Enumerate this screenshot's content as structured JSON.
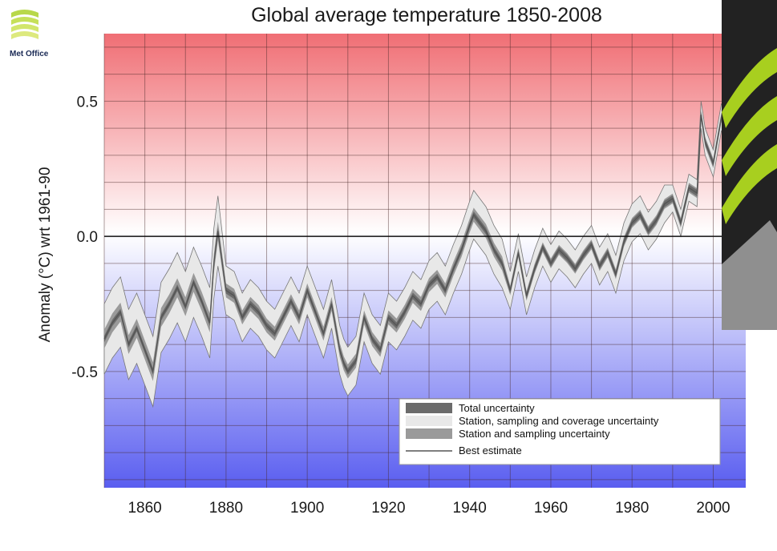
{
  "logo": {
    "text": "Met Office"
  },
  "chart_data": {
    "type": "line",
    "title": "Global average temperature 1850-2008",
    "xlabel": "",
    "ylabel": "Anomaly (°C) wrt 1961-90",
    "xlim": [
      1850,
      2008
    ],
    "ylim": [
      -0.93,
      0.75
    ],
    "x_ticks": [
      1860,
      1880,
      1900,
      1920,
      1940,
      1960,
      1980,
      2000
    ],
    "x_tick_labels": [
      "1860",
      "1880",
      "1900",
      "1920",
      "1940",
      "1960",
      "1980",
      "2000"
    ],
    "y_ticks": [
      0.5,
      0.0,
      -0.5
    ],
    "y_tick_labels": [
      "0.5",
      "0.0",
      "-0.5"
    ],
    "grid": true,
    "zero_line": true,
    "legend_position": "bottom-right",
    "legend": [
      {
        "label": "Total uncertainty",
        "color": "#6b6b6b"
      },
      {
        "label": "Station, sampling and coverage uncertainty",
        "color": "#e8e8e8"
      },
      {
        "label": "Station and sampling uncertainty",
        "color": "#9a9a9a"
      },
      {
        "label": "Best estimate",
        "color": "#555555"
      }
    ],
    "background": {
      "top_color": "#f06e74",
      "mid_color": "#ffffff",
      "bottom_color": "#5a5ef0"
    },
    "series": [
      {
        "name": "Best estimate",
        "x": [
          1850,
          1852,
          1854,
          1856,
          1858,
          1860,
          1862,
          1864,
          1866,
          1868,
          1870,
          1872,
          1874,
          1876,
          1877,
          1878,
          1880,
          1882,
          1884,
          1886,
          1888,
          1890,
          1892,
          1894,
          1896,
          1898,
          1900,
          1902,
          1904,
          1906,
          1908,
          1909,
          1910,
          1912,
          1914,
          1916,
          1918,
          1920,
          1922,
          1924,
          1926,
          1928,
          1930,
          1932,
          1934,
          1936,
          1938,
          1940,
          1941,
          1942,
          1944,
          1946,
          1948,
          1950,
          1952,
          1954,
          1956,
          1958,
          1960,
          1962,
          1964,
          1966,
          1968,
          1970,
          1972,
          1974,
          1976,
          1978,
          1980,
          1982,
          1984,
          1986,
          1988,
          1990,
          1992,
          1994,
          1996,
          1997,
          1998,
          2000,
          2002,
          2004,
          2006,
          2008
        ],
        "values": [
          -0.38,
          -0.32,
          -0.28,
          -0.4,
          -0.34,
          -0.42,
          -0.5,
          -0.3,
          -0.25,
          -0.19,
          -0.26,
          -0.17,
          -0.24,
          -0.32,
          -0.1,
          0.02,
          -0.2,
          -0.22,
          -0.3,
          -0.25,
          -0.28,
          -0.33,
          -0.36,
          -0.3,
          -0.24,
          -0.3,
          -0.2,
          -0.28,
          -0.36,
          -0.25,
          -0.42,
          -0.47,
          -0.5,
          -0.46,
          -0.3,
          -0.38,
          -0.42,
          -0.3,
          -0.33,
          -0.28,
          -0.22,
          -0.25,
          -0.18,
          -0.15,
          -0.2,
          -0.12,
          -0.05,
          0.04,
          0.08,
          0.06,
          0.02,
          -0.05,
          -0.1,
          -0.2,
          -0.06,
          -0.22,
          -0.12,
          -0.04,
          -0.1,
          -0.05,
          -0.08,
          -0.12,
          -0.07,
          -0.03,
          -0.11,
          -0.06,
          -0.14,
          -0.02,
          0.05,
          0.08,
          0.02,
          0.06,
          0.12,
          0.14,
          0.05,
          0.18,
          0.16,
          0.45,
          0.35,
          0.27,
          0.44,
          0.41,
          0.42,
          0.32
        ]
      }
    ]
  }
}
